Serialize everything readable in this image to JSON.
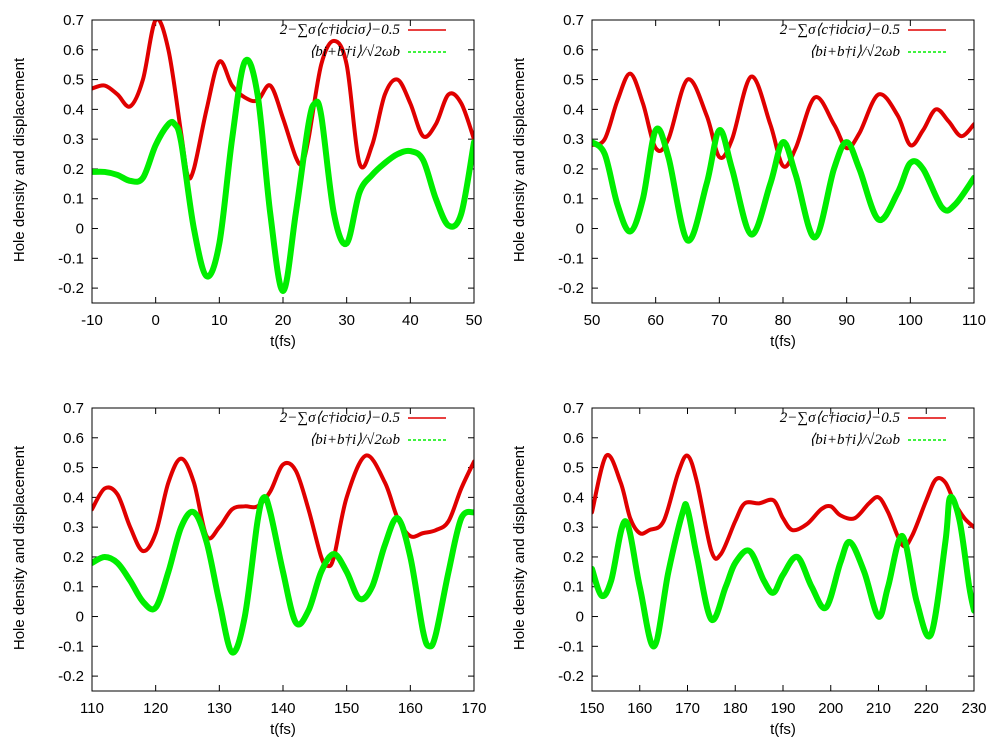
{
  "figure": {
    "ylabel": "Hole density and displacement",
    "xlabel": "t(fs)",
    "legend": {
      "hole": "2−∑σ⟨c†iσciσ⟩−0.5",
      "disp": "⟨bi+b†i⟩/√2ωb"
    },
    "colors": {
      "hole": "#e00000",
      "disp": "#00ee00",
      "frame": "#000000"
    }
  },
  "chart_data": [
    {
      "type": "line",
      "panel": "top-left",
      "xlabel": "t(fs)",
      "ylabel": "Hole density and displacement",
      "xlim": [
        -10,
        50
      ],
      "ylim": [
        -0.25,
        0.7
      ],
      "xticks": [
        -10,
        0,
        10,
        20,
        30,
        40,
        50
      ],
      "yticks": [
        -0.2,
        -0.1,
        0,
        0.1,
        0.2,
        0.3,
        0.4,
        0.5,
        0.6,
        0.7
      ],
      "legend": true,
      "series": [
        {
          "name": "2−∑σ⟨c†iσciσ⟩−0.5",
          "color": "#e00000",
          "x": [
            -10,
            -8,
            -6,
            -4,
            -2,
            0,
            2,
            4,
            5,
            6,
            8,
            10,
            12,
            14,
            16,
            18,
            20,
            22,
            23,
            24,
            26,
            28,
            30,
            32,
            34,
            36,
            38,
            40,
            42,
            44,
            46,
            48,
            50
          ],
          "y": [
            0.47,
            0.48,
            0.45,
            0.41,
            0.5,
            0.7,
            0.6,
            0.32,
            0.18,
            0.2,
            0.4,
            0.56,
            0.48,
            0.44,
            0.43,
            0.48,
            0.37,
            0.24,
            0.22,
            0.3,
            0.55,
            0.63,
            0.55,
            0.22,
            0.28,
            0.45,
            0.5,
            0.42,
            0.31,
            0.35,
            0.45,
            0.42,
            0.3
          ]
        },
        {
          "name": "⟨bi+b†i⟩/√2ωb",
          "color": "#00ee00",
          "x": [
            -10,
            -8,
            -6,
            -4,
            -2,
            0,
            2,
            3,
            4,
            6,
            8,
            10,
            12,
            14,
            16,
            18,
            20,
            22,
            24,
            25,
            26,
            28,
            30,
            32,
            34,
            36,
            38,
            40,
            42,
            44,
            46,
            48,
            50
          ],
          "y": [
            0.19,
            0.19,
            0.18,
            0.16,
            0.17,
            0.28,
            0.35,
            0.35,
            0.29,
            0.0,
            -0.16,
            -0.05,
            0.3,
            0.56,
            0.45,
            0.05,
            -0.21,
            0.05,
            0.35,
            0.42,
            0.38,
            0.05,
            -0.05,
            0.12,
            0.18,
            0.22,
            0.25,
            0.26,
            0.23,
            0.1,
            0.01,
            0.05,
            0.29
          ]
        }
      ]
    },
    {
      "type": "line",
      "panel": "top-right",
      "xlabel": "t(fs)",
      "ylabel": "Hole density and displacement",
      "xlim": [
        50,
        110
      ],
      "ylim": [
        -0.25,
        0.7
      ],
      "xticks": [
        50,
        60,
        70,
        80,
        90,
        100,
        110
      ],
      "yticks": [
        -0.2,
        -0.1,
        0,
        0.1,
        0.2,
        0.3,
        0.4,
        0.5,
        0.6,
        0.7
      ],
      "legend": true,
      "series": [
        {
          "name": "2−∑σ⟨c†iσciσ⟩−0.5",
          "color": "#e00000",
          "x": [
            50,
            52,
            54,
            56,
            58,
            60,
            62,
            65,
            68,
            70,
            72,
            75,
            78,
            80,
            82,
            85,
            88,
            90,
            92,
            95,
            98,
            100,
            102,
            104,
            106,
            108,
            110
          ],
          "y": [
            0.28,
            0.3,
            0.43,
            0.52,
            0.42,
            0.27,
            0.3,
            0.5,
            0.38,
            0.24,
            0.3,
            0.51,
            0.35,
            0.21,
            0.27,
            0.44,
            0.35,
            0.27,
            0.32,
            0.45,
            0.38,
            0.28,
            0.33,
            0.4,
            0.36,
            0.31,
            0.35
          ]
        },
        {
          "name": "⟨bi+b†i⟩/√2ωb",
          "color": "#00ee00",
          "x": [
            50,
            52,
            54,
            56,
            58,
            60,
            62,
            65,
            68,
            70,
            72,
            75,
            78,
            80,
            82,
            85,
            88,
            90,
            92,
            95,
            98,
            100,
            102,
            105,
            107,
            110
          ],
          "y": [
            0.29,
            0.25,
            0.08,
            -0.01,
            0.1,
            0.33,
            0.24,
            -0.04,
            0.15,
            0.33,
            0.2,
            -0.02,
            0.15,
            0.29,
            0.18,
            -0.03,
            0.2,
            0.29,
            0.2,
            0.03,
            0.12,
            0.22,
            0.2,
            0.07,
            0.08,
            0.17
          ]
        }
      ]
    },
    {
      "type": "line",
      "panel": "bottom-left",
      "xlabel": "t(fs)",
      "ylabel": "Hole density and displacement",
      "xlim": [
        110,
        170
      ],
      "ylim": [
        -0.25,
        0.7
      ],
      "xticks": [
        110,
        120,
        130,
        140,
        150,
        160,
        170
      ],
      "yticks": [
        -0.2,
        -0.1,
        0,
        0.1,
        0.2,
        0.3,
        0.4,
        0.5,
        0.6,
        0.7
      ],
      "legend": true,
      "series": [
        {
          "name": "2−∑σ⟨c†iσciσ⟩−0.5",
          "color": "#e00000",
          "x": [
            110,
            112,
            114,
            116,
            118,
            120,
            122,
            124,
            126,
            128,
            130,
            132,
            134,
            136,
            138,
            140,
            142,
            144,
            146,
            147,
            148,
            150,
            153,
            156,
            158,
            160,
            162,
            164,
            166,
            168,
            170
          ],
          "y": [
            0.36,
            0.43,
            0.41,
            0.3,
            0.22,
            0.28,
            0.45,
            0.53,
            0.45,
            0.27,
            0.3,
            0.36,
            0.37,
            0.37,
            0.42,
            0.51,
            0.49,
            0.36,
            0.2,
            0.17,
            0.2,
            0.4,
            0.54,
            0.45,
            0.33,
            0.27,
            0.28,
            0.29,
            0.32,
            0.43,
            0.52
          ]
        },
        {
          "name": "⟨bi+b†i⟩/√2ωb",
          "color": "#00ee00",
          "x": [
            110,
            112,
            114,
            116,
            118,
            120,
            122,
            124,
            126,
            128,
            130,
            132,
            134,
            136,
            137,
            138,
            140,
            142,
            144,
            146,
            148,
            150,
            152,
            154,
            156,
            158,
            160,
            162,
            163,
            164,
            166,
            168,
            170
          ],
          "y": [
            0.18,
            0.2,
            0.18,
            0.12,
            0.05,
            0.03,
            0.15,
            0.3,
            0.35,
            0.25,
            0.05,
            -0.12,
            0.0,
            0.32,
            0.4,
            0.35,
            0.15,
            -0.02,
            0.02,
            0.15,
            0.21,
            0.15,
            0.06,
            0.1,
            0.24,
            0.33,
            0.2,
            -0.05,
            -0.1,
            -0.06,
            0.15,
            0.33,
            0.35
          ]
        }
      ]
    },
    {
      "type": "line",
      "panel": "bottom-right",
      "xlabel": "t(fs)",
      "ylabel": "Hole density and displacement",
      "xlim": [
        150,
        230
      ],
      "ylim": [
        -0.25,
        0.7
      ],
      "xticks": [
        150,
        160,
        170,
        180,
        190,
        200,
        210,
        220,
        230
      ],
      "yticks": [
        -0.2,
        -0.1,
        0,
        0.1,
        0.2,
        0.3,
        0.4,
        0.5,
        0.6,
        0.7
      ],
      "legend": true,
      "series": [
        {
          "name": "2−∑σ⟨c†iσciσ⟩−0.5",
          "color": "#e00000",
          "x": [
            150,
            153,
            156,
            158,
            160,
            162,
            165,
            168,
            170,
            172,
            175,
            177,
            180,
            182,
            185,
            188,
            190,
            192,
            195,
            198,
            200,
            202,
            205,
            208,
            210,
            212,
            215,
            217,
            220,
            222,
            224,
            226,
            228,
            230
          ],
          "y": [
            0.35,
            0.54,
            0.45,
            0.33,
            0.28,
            0.29,
            0.32,
            0.48,
            0.54,
            0.45,
            0.22,
            0.21,
            0.32,
            0.38,
            0.38,
            0.39,
            0.33,
            0.29,
            0.31,
            0.36,
            0.37,
            0.34,
            0.33,
            0.38,
            0.4,
            0.35,
            0.24,
            0.27,
            0.39,
            0.46,
            0.45,
            0.38,
            0.33,
            0.3
          ]
        },
        {
          "name": "⟨bi+b†i⟩/√2ωb",
          "color": "#00ee00",
          "x": [
            150,
            152,
            154,
            157,
            160,
            163,
            166,
            169,
            170,
            172,
            175,
            178,
            180,
            183,
            186,
            188,
            190,
            193,
            196,
            199,
            202,
            204,
            207,
            210,
            212,
            215,
            218,
            221,
            224,
            225,
            227,
            229,
            230
          ],
          "y": [
            0.16,
            0.07,
            0.12,
            0.32,
            0.1,
            -0.1,
            0.15,
            0.35,
            0.36,
            0.2,
            -0.01,
            0.1,
            0.18,
            0.22,
            0.12,
            0.08,
            0.14,
            0.2,
            0.1,
            0.03,
            0.18,
            0.25,
            0.15,
            0.0,
            0.1,
            0.27,
            0.05,
            -0.06,
            0.25,
            0.4,
            0.32,
            0.1,
            0.02
          ]
        }
      ]
    }
  ]
}
